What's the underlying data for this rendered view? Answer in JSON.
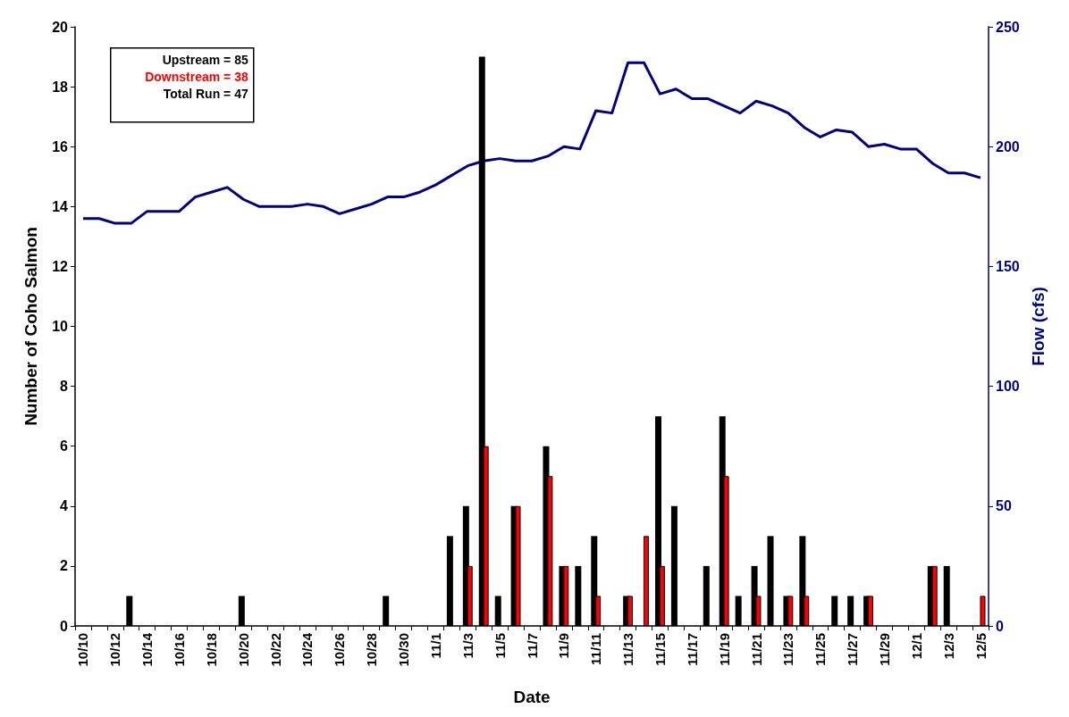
{
  "chart_data": {
    "type": "bar",
    "xlabel": "Date",
    "ylabel": "Number of Coho Salmon",
    "y2label": "Flow (cfs)",
    "categories": [
      "10/10",
      null,
      "10/12",
      null,
      "10/14",
      null,
      "10/16",
      null,
      "10/18",
      null,
      "10/20",
      null,
      "10/22",
      null,
      "10/24",
      null,
      "10/26",
      null,
      "10/28",
      null,
      "10/30",
      null,
      "11/1",
      null,
      "11/3",
      null,
      "11/5",
      null,
      "11/7",
      null,
      "11/9",
      null,
      "11/11",
      null,
      "11/13",
      null,
      "11/15",
      null,
      "11/17",
      null,
      "11/19",
      null,
      "11/21",
      null,
      "11/23",
      null,
      "11/25",
      null,
      "11/27",
      null,
      "11/29",
      null,
      "12/1",
      null,
      "12/3",
      null,
      "12/5"
    ],
    "series": [
      {
        "color": "#000000",
        "values": [
          0,
          0,
          0,
          1,
          0,
          0,
          0,
          0,
          0,
          0,
          1,
          0,
          0,
          0,
          0,
          0,
          0,
          0,
          0,
          1,
          0,
          0,
          0,
          3,
          4,
          19,
          1,
          4,
          0,
          6,
          2,
          2,
          3,
          0,
          1,
          0,
          7,
          4,
          0,
          2,
          7,
          1,
          2,
          3,
          1,
          3,
          0,
          1,
          1,
          1,
          0,
          0,
          0,
          2,
          2,
          0,
          0
        ]
      },
      {
        "name": "Downstream = 38",
        "color": "#ff0000",
        "values": [
          0,
          0,
          0,
          0,
          0,
          0,
          0,
          0,
          0,
          0,
          0,
          0,
          0,
          0,
          0,
          0,
          0,
          0,
          0,
          0,
          0,
          0,
          0,
          0,
          2,
          6,
          0,
          4,
          0,
          5,
          2,
          0,
          1,
          0,
          1,
          3,
          2,
          0,
          0,
          0,
          5,
          0,
          1,
          0,
          1,
          1,
          0,
          0,
          0,
          1,
          0,
          0,
          0,
          2,
          0,
          0,
          1
        ]
      },
      {
        "type": "line",
        "axis": "y2",
        "color": "#000080",
        "values": [
          170,
          170,
          168,
          168,
          173,
          173,
          173,
          179,
          181,
          183,
          178,
          175,
          175,
          175,
          176,
          175,
          172,
          174,
          176,
          179,
          179,
          181,
          184,
          188,
          192,
          194,
          195,
          194,
          194,
          196,
          200,
          199,
          215,
          214,
          235,
          235,
          222,
          224,
          220,
          220,
          217,
          214,
          219,
          217,
          214,
          208,
          204,
          207,
          206,
          200,
          201,
          199,
          199,
          193,
          189,
          189,
          187
        ]
      }
    ],
    "annotations": [
      "Upstream = 85",
      "Total Run = 47"
    ],
    "legend": "top left",
    "ylim": [
      0,
      20
    ],
    "yticks": [
      0,
      2,
      4,
      6,
      8,
      10,
      12,
      14,
      16,
      18,
      20
    ],
    "y2lim": [
      0,
      250
    ],
    "y2ticks": [
      0,
      50,
      100,
      150,
      200,
      250
    ],
    "grid": false,
    "marker": "none",
    "line_style": "solid"
  }
}
